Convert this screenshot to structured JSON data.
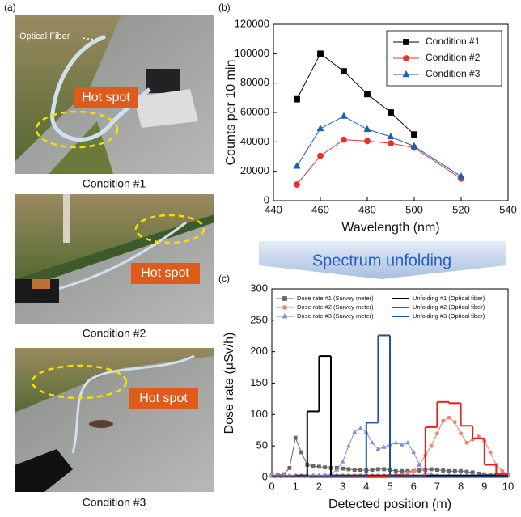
{
  "panel_labels": [
    "(a)",
    "(b)",
    "(c)"
  ],
  "photos": [
    {
      "caption": "Condition #1",
      "labels": [
        "Optical Fiber",
        "Hot spot"
      ]
    },
    {
      "caption": "Condition #2",
      "labels": [
        "Hot spot"
      ]
    },
    {
      "caption": "Condition #3",
      "labels": [
        "Hot spot"
      ]
    }
  ],
  "arrow_label": "Spectrum unfolding",
  "chart_data": [
    {
      "type": "line",
      "xlabel": "Wavelength (nm)",
      "ylabel": "Counts per 10 min",
      "xlim": [
        440,
        540
      ],
      "xticks": [
        440,
        460,
        480,
        500,
        520,
        540
      ],
      "ylim": [
        0,
        120000
      ],
      "yticks": [
        0,
        20000,
        40000,
        60000,
        80000,
        100000,
        120000
      ],
      "legend": "upper right",
      "series": [
        {
          "name": "Condition #1",
          "color": "#000000",
          "marker": "square",
          "x": [
            450,
            460,
            470,
            480,
            490,
            500
          ],
          "values": [
            69000,
            100000,
            88000,
            72500,
            60000,
            45000
          ]
        },
        {
          "name": "Condition #2",
          "color": "#e8312f",
          "marker": "circle",
          "x": [
            450,
            460,
            470,
            480,
            490,
            500,
            520
          ],
          "values": [
            11000,
            30500,
            41500,
            40500,
            39000,
            36000,
            15000
          ]
        },
        {
          "name": "Condition #3",
          "color": "#1f5fb0",
          "marker": "triangle",
          "x": [
            450,
            460,
            470,
            480,
            490,
            500,
            520
          ],
          "values": [
            23500,
            49000,
            57500,
            48500,
            43500,
            37000,
            16500
          ]
        }
      ]
    },
    {
      "type": "line",
      "xlabel": "Detected position (m)",
      "ylabel": "Dose rate (μSv/h)",
      "xlim": [
        0,
        10
      ],
      "xticks": [
        0,
        1,
        2,
        3,
        4,
        5,
        6,
        7,
        8,
        9,
        10
      ],
      "ylim": [
        0,
        300
      ],
      "yticks": [
        0,
        50,
        100,
        150,
        200,
        250,
        300
      ],
      "legend": "upper center",
      "series": [
        {
          "name": "Dose rate #1 (Survey meter)",
          "color": "#666666",
          "marker": "square",
          "x": [
            0,
            0.25,
            0.5,
            0.75,
            1,
            1.25,
            1.5,
            1.75,
            2,
            2.25,
            2.5,
            2.75,
            3,
            3.25,
            3.5,
            3.75,
            4,
            4.25,
            4.5,
            4.75,
            5,
            5.25,
            5.5,
            5.75,
            6,
            6.25,
            6.5,
            6.75,
            7,
            7.25,
            7.5,
            7.75,
            8,
            8.25,
            8.5,
            8.75,
            9,
            9.25,
            9.5,
            9.75,
            10
          ],
          "values": [
            3,
            4,
            5,
            15,
            63,
            40,
            20,
            18,
            17,
            16,
            15,
            15,
            14,
            13,
            12,
            12,
            11,
            12,
            13,
            13,
            12,
            10,
            10,
            10,
            10,
            11,
            12,
            13,
            12,
            11,
            10,
            10,
            10,
            9,
            8,
            6,
            5,
            4,
            4,
            3,
            3
          ]
        },
        {
          "name": "Dose rate #2 (Survey meter)",
          "color": "#f08070",
          "marker": "circle",
          "x": [
            0,
            0.25,
            0.5,
            0.75,
            1,
            1.25,
            1.5,
            1.75,
            2,
            2.25,
            2.5,
            2.75,
            3,
            3.25,
            3.5,
            3.75,
            4,
            4.25,
            4.5,
            4.75,
            5,
            5.25,
            5.5,
            5.75,
            6,
            6.25,
            6.5,
            6.75,
            7,
            7.25,
            7.5,
            7.75,
            8,
            8.25,
            8.5,
            8.75,
            9,
            9.25,
            9.5,
            9.75,
            10
          ],
          "values": [
            3,
            3,
            3,
            3,
            3,
            3,
            3,
            3,
            3,
            3,
            3,
            3,
            3,
            3,
            3,
            3,
            3,
            3,
            3,
            3,
            3,
            4,
            5,
            7,
            10,
            20,
            35,
            50,
            70,
            90,
            95,
            88,
            70,
            55,
            60,
            65,
            58,
            40,
            20,
            10,
            5
          ]
        },
        {
          "name": "Dose rate #3 (Survey meter)",
          "color": "#7f8fd8",
          "marker": "triangle",
          "x": [
            0,
            0.25,
            0.5,
            0.75,
            1,
            1.25,
            1.5,
            1.75,
            2,
            2.25,
            2.5,
            2.75,
            3,
            3.25,
            3.5,
            3.75,
            4,
            4.25,
            4.5,
            4.75,
            5,
            5.25,
            5.5,
            5.75,
            6,
            6.25,
            6.5,
            6.75,
            7,
            7.25,
            7.5,
            7.75,
            8,
            8.25,
            8.5,
            8.75,
            9,
            9.25,
            9.5,
            9.75,
            10
          ],
          "values": [
            2,
            2,
            2,
            2,
            2,
            2,
            2,
            3,
            3,
            4,
            5,
            12,
            25,
            50,
            72,
            78,
            72,
            55,
            45,
            48,
            52,
            55,
            52,
            55,
            40,
            20,
            8,
            5,
            3,
            3,
            3,
            3,
            3,
            3,
            3,
            3,
            3,
            3,
            3,
            3,
            3
          ]
        },
        {
          "name": "Unfolding #1 (Optical fiber)",
          "color": "#000000",
          "step": true,
          "bins": [
            0,
            0.5,
            1,
            1.5,
            2,
            2.5,
            3,
            3.5,
            4,
            4.5,
            5,
            5.5,
            6,
            6.5,
            7,
            7.5,
            8,
            8.5,
            9,
            9.5,
            10
          ],
          "values": [
            2,
            2,
            3,
            105,
            193,
            3,
            3,
            3,
            3,
            3,
            3,
            3,
            3,
            3,
            3,
            3,
            3,
            3,
            3,
            3
          ]
        },
        {
          "name": "Unfolding #2 (Optical fiber)",
          "color": "#e3201b",
          "step": true,
          "bins": [
            0,
            0.5,
            1,
            1.5,
            2,
            2.5,
            3,
            3.5,
            4,
            4.5,
            5,
            5.5,
            6,
            6.5,
            7,
            7.5,
            8,
            8.5,
            9,
            9.5,
            10
          ],
          "values": [
            2,
            2,
            2,
            2,
            2,
            2,
            2,
            2,
            2,
            2,
            2,
            2,
            2,
            80,
            120,
            118,
            82,
            62,
            20,
            5
          ]
        },
        {
          "name": "Unfolding #3 (Optical fiber)",
          "color": "#1f4fa0",
          "step": true,
          "bins": [
            0,
            0.5,
            1,
            1.5,
            2,
            2.5,
            3,
            3.5,
            4,
            4.5,
            5,
            5.5,
            6,
            6.5,
            7,
            7.5,
            8,
            8.5,
            9,
            9.5,
            10
          ],
          "values": [
            1,
            1,
            1,
            1,
            1,
            1,
            1,
            1,
            87,
            226,
            1,
            1,
            1,
            1,
            1,
            1,
            1,
            1,
            1,
            1
          ]
        }
      ]
    }
  ]
}
